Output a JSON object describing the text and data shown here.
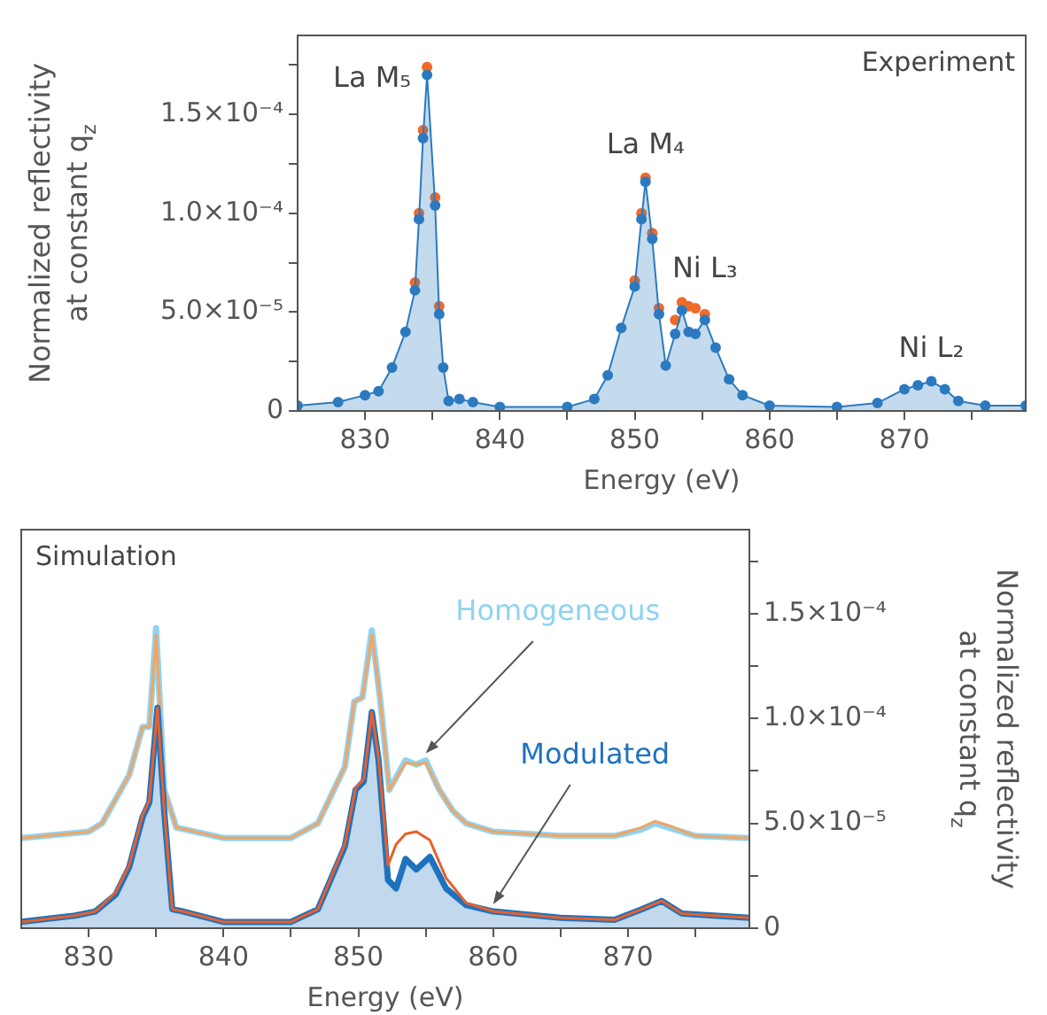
{
  "chart_data": [
    {
      "type": "line",
      "title": "Experiment",
      "xlabel": "Energy (eV)",
      "ylabel": "Normalized reflectivity\nat constant q$_{z}$",
      "marker": "circle",
      "xlim": [
        825,
        879
      ],
      "xticks": [
        830,
        {
          "value": 835,
          "label": null
        },
        840,
        {
          "value": 845,
          "label": null
        },
        850,
        {
          "value": 855,
          "label": null
        },
        860,
        {
          "value": 865,
          "label": null
        },
        870,
        {
          "value": 875,
          "label": null
        }
      ],
      "ylim": [
        0,
        0.00019
      ],
      "yticks": [
        0,
        {
          "value": 2.5e-05,
          "label": null
        },
        {
          "value": 5e-05,
          "label": "5.0×10⁻⁵"
        },
        {
          "value": 7.5e-05,
          "label": null
        },
        {
          "value": 0.0001,
          "label": "1.0×10⁻⁴"
        },
        {
          "value": 0.000125,
          "label": null
        },
        {
          "value": 0.00015,
          "label": "1.5×10⁻⁴"
        },
        {
          "value": 0.000175,
          "label": null
        }
      ],
      "annotations": [
        {
          "text": "La M₅",
          "x": 834.6,
          "y": 0.000174
        },
        {
          "text": "La M₄",
          "x": 850.8,
          "y": 0.000118
        },
        {
          "text": "Ni L₃",
          "x": 855.2,
          "y": 5.5e-05
        },
        {
          "text": "Ni L₂",
          "x": 872,
          "y": 1.5e-05
        }
      ],
      "series": [
        {
          "type": "scatter",
          "color": "#f06a2a",
          "x": [
            833.7,
            834,
            834.3,
            834.6,
            835.2,
            835.5,
            850,
            850.5,
            850.8,
            851.3,
            851.8,
            853,
            853.5,
            854,
            854.5,
            855.2
          ],
          "values": [
            6.5e-05,
            0.0001,
            0.000142,
            0.000174,
            0.000108,
            5.3e-05,
            6.6e-05,
            0.0001,
            0.000118,
            9e-05,
            5.2e-05,
            4.6e-05,
            5.5e-05,
            5.3e-05,
            5.2e-05,
            4.9e-05
          ]
        },
        {
          "type": "area",
          "color": "#2b7ac0",
          "x": [
            825,
            828,
            830,
            831,
            832,
            833,
            833.7,
            834,
            834.3,
            834.6,
            835.2,
            835.5,
            835.8,
            836.2,
            837,
            838,
            840,
            845,
            847,
            848,
            849,
            850,
            850.5,
            850.8,
            851.3,
            851.8,
            852.3,
            853,
            853.5,
            854,
            854.5,
            855.2,
            856,
            857,
            858,
            860,
            865,
            868,
            870,
            871,
            872,
            873,
            874,
            876,
            879
          ],
          "values": [
            2.7e-06,
            4.5e-06,
            8e-06,
            1e-05,
            2.2e-05,
            4e-05,
            6.1e-05,
            9.7e-05,
            0.000138,
            0.00017,
            0.000104,
            4.9e-05,
            2.2e-05,
            5e-06,
            6e-06,
            4.5e-06,
            2e-06,
            2e-06,
            6e-06,
            1.8e-05,
            4.2e-05,
            6.3e-05,
            9.7e-05,
            0.000116,
            8.7e-05,
            4.9e-05,
            2.3e-05,
            3.9e-05,
            5.1e-05,
            4e-05,
            3.9e-05,
            4.6e-05,
            3.2e-05,
            1.6e-05,
            8e-06,
            2.7e-06,
            2e-06,
            4e-06,
            1.1e-05,
            1.3e-05,
            1.5e-05,
            1.1e-05,
            5e-06,
            2.7e-06,
            2.7e-06
          ]
        }
      ]
    },
    {
      "type": "line",
      "title": "Simulation",
      "xlabel": "Energy (eV)",
      "y2label": "Normalized reflectivity\nat constant q$_{z}$",
      "marker": "none",
      "xlim": [
        825,
        879
      ],
      "xticks": [
        830,
        {
          "value": 835,
          "label": null
        },
        840,
        {
          "value": 845,
          "label": null
        },
        850,
        {
          "value": 855,
          "label": null
        },
        860,
        {
          "value": 865,
          "label": null
        },
        870,
        {
          "value": 875,
          "label": null
        }
      ],
      "y2lim": [
        0,
        0.00019
      ],
      "y2ticks": [
        0,
        {
          "value": 2.5e-05,
          "label": null
        },
        {
          "value": 5e-05,
          "label": "5.0×10⁻⁵"
        },
        {
          "value": 7.5e-05,
          "label": null
        },
        {
          "value": 0.0001,
          "label": "1.0×10⁻⁴"
        },
        {
          "value": 0.000125,
          "label": null
        },
        {
          "value": 0.00015,
          "label": "1.5×10⁻⁴"
        },
        {
          "value": 0.000175,
          "label": null
        }
      ],
      "series": [
        {
          "type": "line",
          "axis": "y2",
          "name": "Homogeneous",
          "color": "#8fd3f2",
          "x": [
            825,
            830,
            831,
            833,
            834,
            834.5,
            835,
            835.6,
            836.5,
            840,
            845,
            847,
            849,
            849.7,
            850.3,
            851,
            851.6,
            852.3,
            853.5,
            854.3,
            855,
            856,
            857,
            858,
            860,
            865,
            869,
            871,
            872,
            873,
            875,
            879
          ],
          "values": [
            4.3e-05,
            4.6e-05,
            5e-05,
            7.3e-05,
            9.6e-05,
            9.6e-05,
            0.000143,
            6.6e-05,
            4.8e-05,
            4.3e-05,
            4.3e-05,
            5e-05,
            7.7e-05,
            0.000108,
            0.00011,
            0.000142,
            0.00011,
            6.6e-05,
            8e-05,
            7.8e-05,
            8e-05,
            6.6e-05,
            5.6e-05,
            5e-05,
            4.6e-05,
            4.4e-05,
            4.4e-05,
            4.7e-05,
            5e-05,
            4.8e-05,
            4.4e-05,
            4.3e-05
          ]
        },
        {
          "type": "line",
          "axis": "y2",
          "color": "#f4a460",
          "x": [
            825,
            830,
            831,
            833,
            834,
            834.5,
            835,
            835.6,
            836.5,
            840,
            845,
            847,
            849,
            849.7,
            850.3,
            851,
            851.6,
            852.3,
            853.5,
            854.3,
            855,
            856,
            857,
            858,
            860,
            865,
            869,
            871,
            872,
            873,
            875,
            879
          ],
          "values": [
            4.3e-05,
            4.6e-05,
            5e-05,
            7.3e-05,
            9.6e-05,
            9.6e-05,
            0.00014,
            6.6e-05,
            4.8e-05,
            4.3e-05,
            4.3e-05,
            5e-05,
            7.7e-05,
            0.000108,
            0.00011,
            0.00014,
            0.00011,
            6.6e-05,
            7.9e-05,
            7.8e-05,
            7.9e-05,
            6.6e-05,
            5.6e-05,
            5e-05,
            4.6e-05,
            4.4e-05,
            4.4e-05,
            4.8e-05,
            5.1e-05,
            4.9e-05,
            4.4e-05,
            4.3e-05
          ]
        },
        {
          "type": "area",
          "axis": "y2",
          "name": "Modulated",
          "color": "#1f72bd",
          "x": [
            825,
            829,
            830.5,
            832,
            833,
            834,
            834.5,
            835.1,
            835.6,
            836.2,
            837,
            840,
            845,
            847,
            849,
            849.8,
            850.4,
            851,
            851.5,
            852.2,
            852.8,
            853.5,
            854.3,
            855.3,
            856.5,
            858,
            860,
            865,
            869,
            871,
            872.5,
            874,
            879
          ],
          "values": [
            3e-06,
            6e-06,
            8e-06,
            1.6e-05,
            2.9e-05,
            5.3e-05,
            6e-05,
            0.000105,
            5.6e-05,
            9e-06,
            8e-06,
            3e-06,
            3e-06,
            9e-06,
            3.9e-05,
            6.6e-05,
            7e-05,
            0.000103,
            8e-05,
            2.3e-05,
            1.9e-05,
            3.3e-05,
            2.8e-05,
            3.4e-05,
            1.9e-05,
            1.1e-05,
            8e-06,
            5e-06,
            4e-06,
            9e-06,
            1.3e-05,
            7e-06,
            5e-06
          ]
        },
        {
          "type": "line",
          "axis": "y2",
          "color": "#e8602c",
          "x": [
            825,
            829,
            830.5,
            832,
            833,
            834,
            834.5,
            835.1,
            835.6,
            836.2,
            837,
            840,
            845,
            847,
            849,
            849.8,
            850.4,
            851,
            851.5,
            852.2,
            852.8,
            853.5,
            854.3,
            855.3,
            856.5,
            858,
            860,
            865,
            869,
            871,
            872.5,
            874,
            879
          ],
          "values": [
            3e-06,
            6e-06,
            8e-06,
            1.7e-05,
            3e-05,
            5.4e-05,
            6.1e-05,
            0.000105,
            5.7e-05,
            9e-06,
            8e-06,
            3e-06,
            3e-06,
            9e-06,
            4e-05,
            6.7e-05,
            7.1e-05,
            0.000103,
            8.1e-05,
            3e-05,
            4e-05,
            4.5e-05,
            4.6e-05,
            4.2e-05,
            2.4e-05,
            1.2e-05,
            8e-06,
            5e-06,
            4e-06,
            9e-06,
            1.3e-05,
            7e-06,
            5e-06
          ]
        }
      ]
    }
  ]
}
